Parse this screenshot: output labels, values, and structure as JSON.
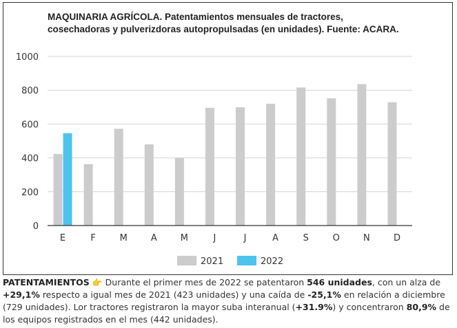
{
  "chart_data": {
    "type": "bar",
    "title": "MAQUINARIA AGRÍCOLA. Patentamientos mensuales de tractores, cosechadoras y pulverizdoras autopropulsadas (en unidades). Fuente: ACARA.",
    "categories": [
      "E",
      "F",
      "M",
      "A",
      "M",
      "J",
      "J",
      "A",
      "S",
      "O",
      "N",
      "D"
    ],
    "series": [
      {
        "name": "2021",
        "color": "#cccccc",
        "values": [
          423,
          363,
          572,
          480,
          400,
          696,
          699,
          720,
          816,
          752,
          836,
          729
        ]
      },
      {
        "name": "2022",
        "color": "#4dc3ee",
        "values": [
          546,
          null,
          null,
          null,
          null,
          null,
          null,
          null,
          null,
          null,
          null,
          null
        ]
      }
    ],
    "ylim": [
      0,
      1000
    ],
    "yticks": [
      "0",
      "200",
      "400",
      "600",
      "800",
      "1000"
    ],
    "grid": true,
    "legend_position": "bottom"
  },
  "caption": {
    "lead": "PATENTAMIENTOS",
    "icon": "pointing-hand-icon",
    "segments": [
      {
        "text": " Durante el primer mes de 2022 se patentaron ",
        "bold": false
      },
      {
        "text": "546 unidades",
        "bold": true
      },
      {
        "text": ", con un alza de ",
        "bold": false
      },
      {
        "text": "+29,1%",
        "bold": true
      },
      {
        "text": " respecto a igual mes de 2021 (423 unidades) y una caída de ",
        "bold": false
      },
      {
        "text": "-25,1%",
        "bold": true
      },
      {
        "text": " en relación a diciembre (729 unidades). Lor tractores registraron la mayor suba interanual (",
        "bold": false
      },
      {
        "text": "+31.9%",
        "bold": true
      },
      {
        "text": ") y concentraron ",
        "bold": false
      },
      {
        "text": "80,9%",
        "bold": true
      },
      {
        "text": " de los equipos registrados en el mes (442 unidades).",
        "bold": false
      }
    ]
  }
}
